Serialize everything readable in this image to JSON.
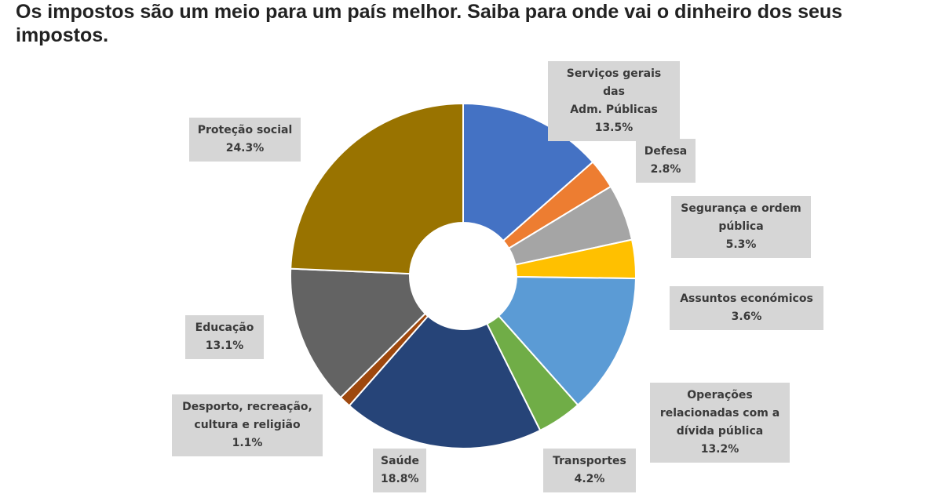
{
  "headline": "Os impostos são um meio para um país melhor. Saiba para onde vai o dinheiro dos seus impostos.",
  "chart_data": {
    "type": "pie",
    "variant": "donut",
    "title": "",
    "slices": [
      {
        "label_lines": [
          "Serviços gerais das",
          "Adm. Públicas"
        ],
        "value_text": "13.5%",
        "value": 13.5,
        "color": "#4472c4"
      },
      {
        "label_lines": [
          "Defesa"
        ],
        "value_text": "2.8%",
        "value": 2.8,
        "color": "#ed7d31"
      },
      {
        "label_lines": [
          "Segurança e ordem",
          "pública"
        ],
        "value_text": "5.3%",
        "value": 5.3,
        "color": "#a5a5a5"
      },
      {
        "label_lines": [
          "Assuntos económicos"
        ],
        "value_text": "3.6%",
        "value": 3.6,
        "color": "#ffc000"
      },
      {
        "label_lines": [
          "Operações",
          "relacionadas com a",
          "dívida pública"
        ],
        "value_text": "13.2%",
        "value": 13.2,
        "color": "#5b9bd5"
      },
      {
        "label_lines": [
          "Transportes"
        ],
        "value_text": "4.2%",
        "value": 4.2,
        "color": "#70ad47"
      },
      {
        "label_lines": [
          "Saúde"
        ],
        "value_text": "18.8%",
        "value": 18.8,
        "color": "#264478"
      },
      {
        "label_lines": [
          "Desporto, recreação,",
          "cultura e religião"
        ],
        "value_text": "1.1%",
        "value": 1.1,
        "color": "#9e480e"
      },
      {
        "label_lines": [
          "Educação"
        ],
        "value_text": "13.1%",
        "value": 13.1,
        "color": "#636363"
      },
      {
        "label_lines": [
          "Proteção social"
        ],
        "value_text": "24.3%",
        "value": 24.3,
        "color": "#997300"
      }
    ]
  }
}
